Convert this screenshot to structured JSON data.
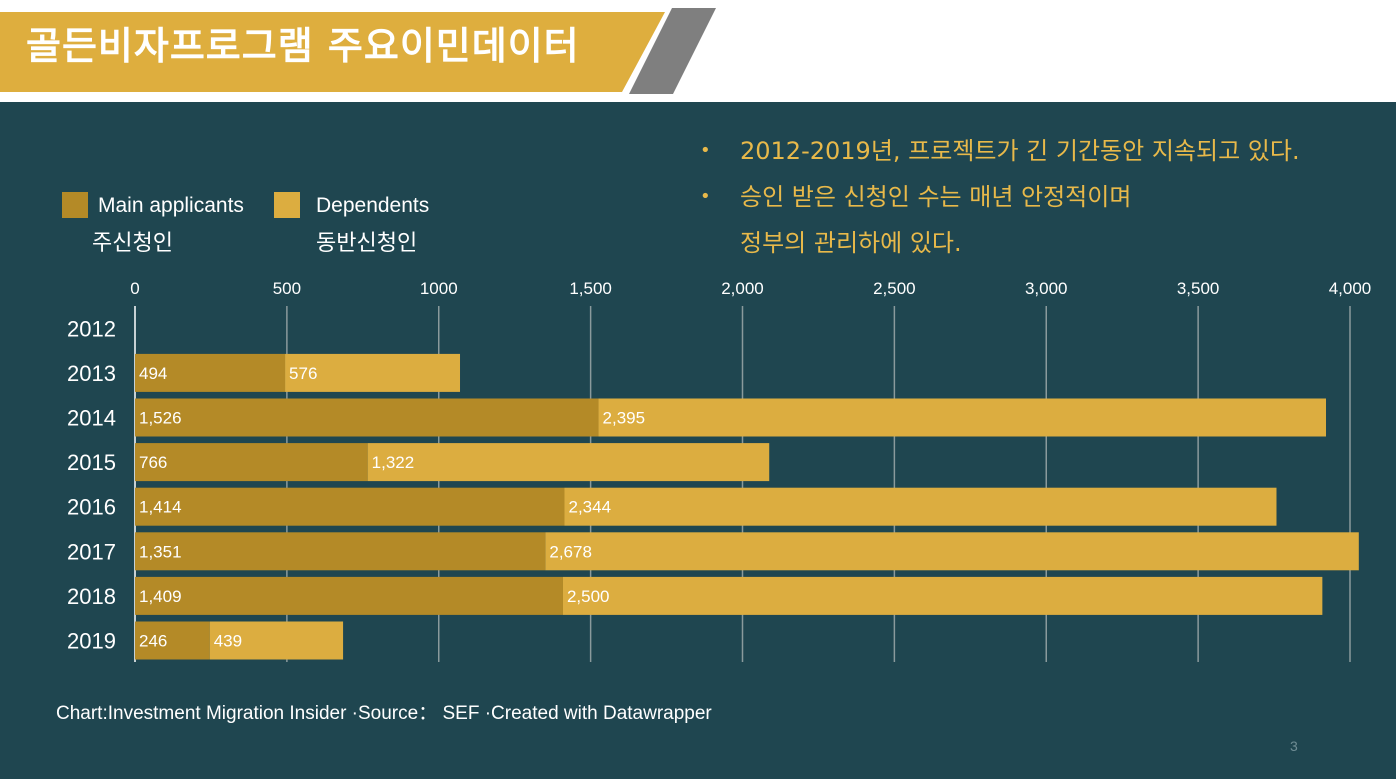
{
  "title": "골든비자프로그램 주요이민데이터",
  "bullets": [
    "2012-2019년, 프로젝트가 긴 기간동안 지속되고 있다.",
    "승인 받은 신청인 수는 매년 안정적이며",
    "정부의 관리하에 있다."
  ],
  "bullet_marker": "•",
  "legend": {
    "main_label": "Main applicants",
    "main_sub": "주신청인",
    "dep_label": "Dependents",
    "dep_sub": "동반신청인"
  },
  "colors": {
    "banner": "#deae3e",
    "background": "#1f4650",
    "main": "#b48a27",
    "dependents": "#dcad40",
    "gridline": "#8a9a9c",
    "text": "#ffffff",
    "bullet_text": "#e8b94a"
  },
  "chart_data": {
    "type": "bar",
    "orientation": "horizontal",
    "stacked": true,
    "categories": [
      "2012",
      "2013",
      "2014",
      "2015",
      "2016",
      "2017",
      "2018",
      "2019"
    ],
    "series": [
      {
        "name": "Main applicants",
        "values": [
          null,
          494,
          1526,
          766,
          1414,
          1351,
          1409,
          246
        ]
      },
      {
        "name": "Dependents",
        "values": [
          null,
          576,
          2395,
          1322,
          2344,
          2678,
          2500,
          439
        ]
      }
    ],
    "data_labels": [
      [
        "",
        ""
      ],
      [
        "494",
        "576"
      ],
      [
        "1,526",
        "2,395"
      ],
      [
        "766",
        "1,322"
      ],
      [
        "1,414",
        "2,344"
      ],
      [
        "1,351",
        "2,678"
      ],
      [
        "1,409",
        "2,500"
      ],
      [
        "246",
        "439"
      ]
    ],
    "x_ticks": [
      0,
      500,
      1000,
      1500,
      2000,
      2500,
      3000,
      3500,
      4000
    ],
    "x_tick_labels": [
      "0",
      "500",
      "1000",
      "1,500",
      "2,000",
      "2,500",
      "3,000",
      "3,500",
      "4,000"
    ],
    "xlim": [
      0,
      4030
    ],
    "grid": true,
    "legend_position": "top-left"
  },
  "footer": "Chart:Investment Migration Insider ·Source： SEF ·Created with Datawrapper",
  "page_number": "3"
}
